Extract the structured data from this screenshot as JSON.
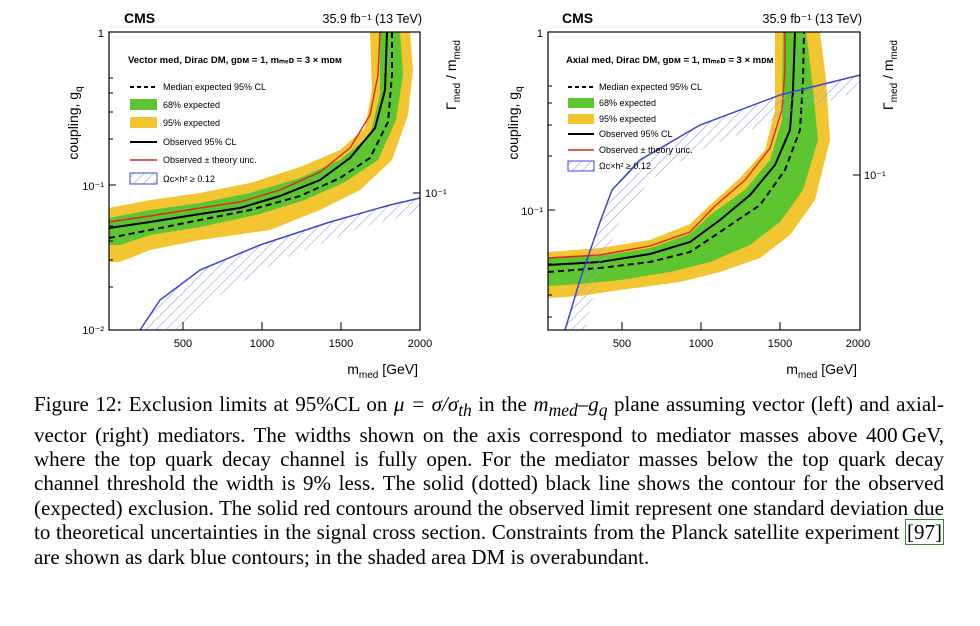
{
  "figure": {
    "panels": [
      {
        "id": "left",
        "experiment": "CMS",
        "lumi": "35.9 fb⁻¹ (13 TeV)",
        "model": "Vector med, Dirac DM, gᴅᴍ = 1, mₘₑᴅ = 3 × mᴅᴍ",
        "xlabel": "m_med [GeV]",
        "ylabel": "coupling, g_q",
        "ylabel_right": "Γ_med / m_med",
        "x_ticks": [
          "500",
          "1000",
          "1500",
          "2000"
        ],
        "y_ticks": [
          "1",
          "10⁻¹",
          "10⁻²"
        ],
        "y_right_ticks": [
          "10⁻¹"
        ],
        "legend": [
          {
            "label": "Median expected 95% CL",
            "style": "dashed",
            "color": "#000000"
          },
          {
            "label": "68% expected",
            "style": "fill",
            "color": "#5cc52f"
          },
          {
            "label": "95% expected",
            "style": "fill",
            "color": "#f2c531"
          },
          {
            "label": "Observed 95% CL",
            "style": "solid",
            "color": "#000000"
          },
          {
            "label": "Observed ± theory unc.",
            "style": "solid",
            "color": "#e0261f"
          },
          {
            "label": "Ωᴄ×h² ≥ 0.12",
            "style": "hatch",
            "color": "#3b47d6"
          }
        ]
      },
      {
        "id": "right",
        "experiment": "CMS",
        "lumi": "35.9 fb⁻¹ (13 TeV)",
        "model": "Axial med, Dirac DM, gᴅᴍ = 1, mₘₑᴅ = 3 × mᴅᴍ",
        "xlabel": "m_med [GeV]",
        "ylabel": "coupling, g_q",
        "ylabel_right": "Γ_med / m_med",
        "x_ticks": [
          "500",
          "1000",
          "1500",
          "2000"
        ],
        "y_ticks": [
          "1",
          "10⁻¹"
        ],
        "y_right_ticks": [
          "10⁻¹"
        ],
        "legend": [
          {
            "label": "Median expected 95% CL",
            "style": "dashed",
            "color": "#000000"
          },
          {
            "label": "68% expected",
            "style": "fill",
            "color": "#5cc52f"
          },
          {
            "label": "95% expected",
            "style": "fill",
            "color": "#f2c531"
          },
          {
            "label": "Observed 95% CL",
            "style": "solid",
            "color": "#000000"
          },
          {
            "label": "Observed ± theory unc.",
            "style": "solid",
            "color": "#e0261f"
          },
          {
            "label": "Ωᴄ×h² ≥ 0.12",
            "style": "hatch",
            "color": "#3b47d6"
          }
        ]
      }
    ]
  },
  "caption": {
    "label": "Figure 12:",
    "text_1": " Exclusion limits at 95%CL on ",
    "math_1": "μ = σ/σ",
    "math_1_sub": "th",
    "text_2": " in the ",
    "math_2": "m",
    "math_2_sub": "med",
    "math_3": "–g",
    "math_3_sub": "q",
    "text_3": " plane assuming vector (left) and axial-vector (right) mediators. The widths shown on the axis correspond to mediator masses above 400 GeV, where the top quark decay channel is fully open. For the mediator masses below the top quark decay channel threshold the width is 9% less. The solid (dotted) black line shows the contour for the observed (expected) exclusion. The solid red contours around the observed limit represent one standard deviation due to theoretical uncertainties in the signal cross section. Constraints from the Planck satellite experiment ",
    "ref": "[97]",
    "text_4": " are shown as dark blue contours; in the shaded area DM is overabundant."
  }
}
